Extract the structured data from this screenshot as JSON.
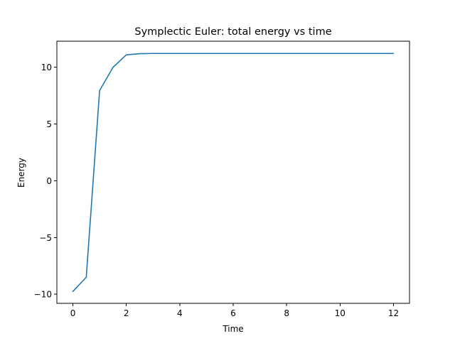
{
  "chart_data": {
    "type": "line",
    "title": "Symplectic Euler: total energy vs time",
    "xlabel": "Time",
    "ylabel": "Energy",
    "xlim": [
      -0.6,
      12.6
    ],
    "ylim": [
      -10.8,
      12.3
    ],
    "xticks": [
      0,
      2,
      4,
      6,
      8,
      10,
      12
    ],
    "xtick_labels": [
      "0",
      "2",
      "4",
      "6",
      "8",
      "10",
      "12"
    ],
    "yticks": [
      -10,
      -5,
      0,
      5,
      10
    ],
    "ytick_labels": [
      "−10",
      "−5",
      "0",
      "5",
      "10"
    ],
    "grid": false,
    "legend": "none",
    "series": [
      {
        "color": "#1f77b4",
        "x": [
          0,
          0.5,
          1.0,
          1.5,
          2.0,
          2.5,
          3.0,
          3.5,
          4.0,
          4.5,
          5.0,
          5.5,
          6.0,
          6.5,
          7.0,
          7.5,
          8.0,
          8.5,
          9.0,
          9.5,
          10.0,
          10.5,
          11.0,
          11.5,
          12.0
        ],
        "y": [
          -9.75,
          -8.5,
          7.95,
          10.0,
          11.1,
          11.2,
          11.22,
          11.22,
          11.22,
          11.22,
          11.22,
          11.22,
          11.22,
          11.22,
          11.22,
          11.22,
          11.22,
          11.22,
          11.22,
          11.22,
          11.22,
          11.22,
          11.22,
          11.22,
          11.22
        ]
      }
    ]
  }
}
